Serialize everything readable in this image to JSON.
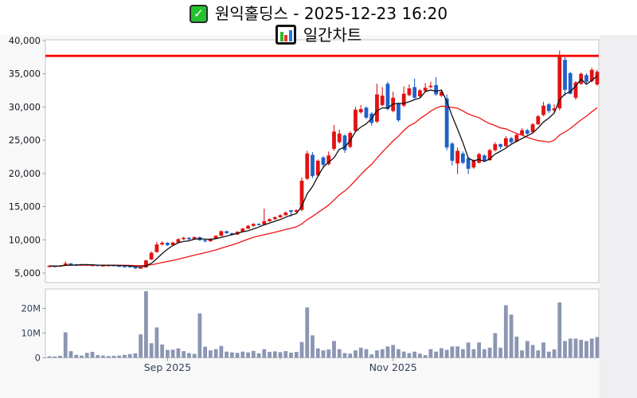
{
  "title": {
    "line1": "원익홀딩스 - 2025-12-23 16:20",
    "line2": "일간차트",
    "line1_icon": "checkbox-checked-icon",
    "line2_icon": "bar-chart-icon"
  },
  "chart_data": {
    "type": "candlestick-with-volume",
    "title": "원익홀딩스 - 2025-12-23 16:20 일간차트",
    "x_axis": {
      "labels": [
        {
          "index": 22,
          "label": "Sep 2025"
        },
        {
          "index": 64,
          "label": "Nov 2025"
        }
      ],
      "minor_tick_indices": [
        43,
        85
      ]
    },
    "price_axis": {
      "tick_values": [
        5000,
        10000,
        15000,
        20000,
        25000,
        30000,
        35000,
        40000
      ],
      "min": 3500,
      "max": 40100,
      "grid": false
    },
    "volume_axis": {
      "ticks": [
        {
          "value": 0,
          "label": "0"
        },
        {
          "value": 10,
          "label": "10M"
        },
        {
          "value": 20,
          "label": "20M"
        }
      ],
      "unit": "millions of shares"
    },
    "resistance_line": {
      "level": 37700
    },
    "overlays": [
      {
        "name": "short-moving-average",
        "period": 5,
        "color": "#101010"
      },
      {
        "name": "long-moving-average",
        "period": 20,
        "color": "#f01414"
      }
    ],
    "colors": {
      "up_candle": "#e31212",
      "down_candle": "#1e62c9",
      "ma_short": "#101010",
      "ma_long": "#f01414",
      "resistance": "#fb0505",
      "volume_bar": "#8c96b3",
      "panel_border": "#c6c6c6",
      "plot_bg": "#ffffff",
      "page_bg": "#f8f8f9",
      "right_margin_bg": "#efeff1",
      "price_label": "#17171f",
      "axis_label": "#333f5e"
    },
    "candles_format": [
      "open",
      "high",
      "low",
      "close",
      "volume_millions"
    ],
    "candles": [
      [
        5950,
        6150,
        5880,
        6080,
        0.6
      ],
      [
        6080,
        6120,
        5950,
        6000,
        0.5
      ],
      [
        6000,
        6180,
        5960,
        6130,
        0.8
      ],
      [
        6130,
        6750,
        6100,
        6450,
        10.3
      ],
      [
        6450,
        6500,
        6200,
        6280,
        2.7
      ],
      [
        6280,
        6380,
        6150,
        6220,
        1.2
      ],
      [
        6220,
        6320,
        6180,
        6280,
        0.9
      ],
      [
        6280,
        6300,
        6080,
        6150,
        2.0
      ],
      [
        6150,
        6280,
        6100,
        6230,
        2.4
      ],
      [
        6230,
        6250,
        6020,
        6080,
        1.1
      ],
      [
        6080,
        6220,
        6050,
        6170,
        0.9
      ],
      [
        6170,
        6260,
        6120,
        6210,
        0.7
      ],
      [
        6210,
        6230,
        6060,
        6120,
        0.8
      ],
      [
        6120,
        6180,
        6000,
        6060,
        0.9
      ],
      [
        6060,
        6140,
        5980,
        6050,
        1.2
      ],
      [
        6050,
        6080,
        5820,
        5890,
        1.5
      ],
      [
        5890,
        5950,
        5600,
        5720,
        1.8
      ],
      [
        5720,
        5900,
        5680,
        5840,
        9.5
      ],
      [
        5840,
        7000,
        5800,
        6890,
        27.0
      ],
      [
        7050,
        8250,
        6950,
        8050,
        5.9
      ],
      [
        8150,
        9700,
        8050,
        9300,
        12.3
      ],
      [
        9300,
        9800,
        9150,
        9550,
        5.4
      ],
      [
        9550,
        9650,
        9050,
        9200,
        3.2
      ],
      [
        9200,
        9700,
        9150,
        9600,
        3.3
      ],
      [
        9600,
        10250,
        9500,
        10100,
        3.8
      ],
      [
        10100,
        10450,
        9950,
        10300,
        2.7
      ],
      [
        10300,
        10380,
        9980,
        10080,
        1.9
      ],
      [
        10080,
        10500,
        10020,
        10400,
        1.6
      ],
      [
        10400,
        10480,
        9850,
        9950,
        18.0
      ],
      [
        9950,
        10050,
        9650,
        9780,
        4.5
      ],
      [
        9780,
        10250,
        9720,
        10150,
        3.0
      ],
      [
        10150,
        10700,
        10100,
        10600,
        3.5
      ],
      [
        10600,
        11400,
        10550,
        11300,
        4.8
      ],
      [
        11300,
        11380,
        10900,
        11000,
        2.5
      ],
      [
        11000,
        11080,
        10680,
        10800,
        2.2
      ],
      [
        10800,
        11300,
        10750,
        11200,
        2.0
      ],
      [
        11200,
        11800,
        11150,
        11700,
        2.5
      ],
      [
        11700,
        12250,
        11600,
        12100,
        2.2
      ],
      [
        12100,
        12500,
        11980,
        12400,
        2.8
      ],
      [
        12400,
        12480,
        12150,
        12250,
        1.8
      ],
      [
        12300,
        14700,
        12250,
        12800,
        3.5
      ],
      [
        12800,
        13250,
        12700,
        13100,
        2.4
      ],
      [
        13100,
        13550,
        13000,
        13400,
        2.6
      ],
      [
        13400,
        13850,
        13300,
        13700,
        2.3
      ],
      [
        13700,
        14250,
        13650,
        14100,
        2.7
      ],
      [
        14450,
        14500,
        13500,
        14200,
        2.1
      ],
      [
        14200,
        14600,
        14100,
        14450,
        2.4
      ],
      [
        14500,
        19400,
        14300,
        18900,
        6.4
      ],
      [
        19200,
        23400,
        19000,
        23000,
        20.4
      ],
      [
        22800,
        23200,
        19300,
        19600,
        9.1
      ],
      [
        19700,
        22100,
        19500,
        21900,
        3.8
      ],
      [
        22400,
        22600,
        20800,
        21300,
        3.0
      ],
      [
        21400,
        23300,
        21200,
        22700,
        3.4
      ],
      [
        23700,
        27300,
        23400,
        26300,
        6.8
      ],
      [
        24700,
        26600,
        24500,
        26000,
        3.5
      ],
      [
        25700,
        25900,
        23100,
        23500,
        1.9
      ],
      [
        24000,
        26300,
        23800,
        26100,
        1.7
      ],
      [
        26400,
        30000,
        26200,
        29600,
        3.0
      ],
      [
        29200,
        30300,
        29000,
        29700,
        4.1
      ],
      [
        29900,
        30100,
        28200,
        28400,
        3.5
      ],
      [
        29000,
        29200,
        27200,
        27600,
        1.4
      ],
      [
        27800,
        33500,
        27600,
        31900,
        3.0
      ],
      [
        30300,
        33000,
        30100,
        31700,
        3.5
      ],
      [
        33500,
        33800,
        29500,
        29700,
        4.6
      ],
      [
        29400,
        32300,
        29200,
        31400,
        5.2
      ],
      [
        30500,
        30700,
        27800,
        28000,
        3.5
      ],
      [
        30200,
        33100,
        30000,
        32000,
        2.5
      ],
      [
        31800,
        33400,
        31600,
        32800,
        1.9
      ],
      [
        33000,
        34300,
        31200,
        31400,
        2.5
      ],
      [
        31600,
        32700,
        31400,
        32500,
        1.7
      ],
      [
        32400,
        33600,
        32200,
        32900,
        1.1
      ],
      [
        33000,
        33800,
        32800,
        33200,
        3.5
      ],
      [
        33300,
        34500,
        31700,
        31900,
        2.5
      ],
      [
        31700,
        32500,
        31500,
        32300,
        3.9
      ],
      [
        31300,
        31900,
        23500,
        23900,
        3.2
      ],
      [
        24500,
        24700,
        21200,
        21900,
        4.6
      ],
      [
        21500,
        23900,
        19900,
        23400,
        4.6
      ],
      [
        23000,
        23300,
        21400,
        21600,
        3.5
      ],
      [
        22300,
        22500,
        19900,
        20700,
        6.2
      ],
      [
        20900,
        22100,
        20700,
        21900,
        3.5
      ],
      [
        21600,
        23100,
        21500,
        22900,
        6.2
      ],
      [
        22700,
        22900,
        21700,
        21900,
        3.5
      ],
      [
        22000,
        23700,
        21900,
        23500,
        4.1
      ],
      [
        23500,
        24700,
        23300,
        24400,
        10.0
      ],
      [
        24400,
        24500,
        23700,
        24000,
        4.1
      ],
      [
        24100,
        25600,
        24000,
        25300,
        21.3
      ],
      [
        25300,
        25500,
        24400,
        24700,
        17.5
      ],
      [
        24800,
        26000,
        24700,
        25800,
        8.6
      ],
      [
        25800,
        26800,
        25700,
        26500,
        3.0
      ],
      [
        26500,
        26700,
        25800,
        26000,
        6.8
      ],
      [
        26200,
        27600,
        26100,
        27400,
        5.2
      ],
      [
        27400,
        28800,
        27300,
        28600,
        3.0
      ],
      [
        28800,
        30800,
        28600,
        30200,
        6.2
      ],
      [
        30400,
        30600,
        29100,
        29400,
        2.5
      ],
      [
        29500,
        30400,
        29300,
        29800,
        3.4
      ],
      [
        29800,
        38500,
        29500,
        37700,
        22.4
      ],
      [
        37100,
        37500,
        31700,
        32600,
        6.8
      ],
      [
        35100,
        35300,
        31900,
        32000,
        7.8
      ],
      [
        31400,
        33900,
        31100,
        33700,
        7.8
      ],
      [
        33500,
        35200,
        33300,
        35000,
        7.3
      ],
      [
        34800,
        35100,
        33400,
        33800,
        6.8
      ],
      [
        33900,
        35900,
        33700,
        35600,
        7.8
      ],
      [
        33400,
        35600,
        33200,
        35300,
        8.4
      ]
    ]
  }
}
